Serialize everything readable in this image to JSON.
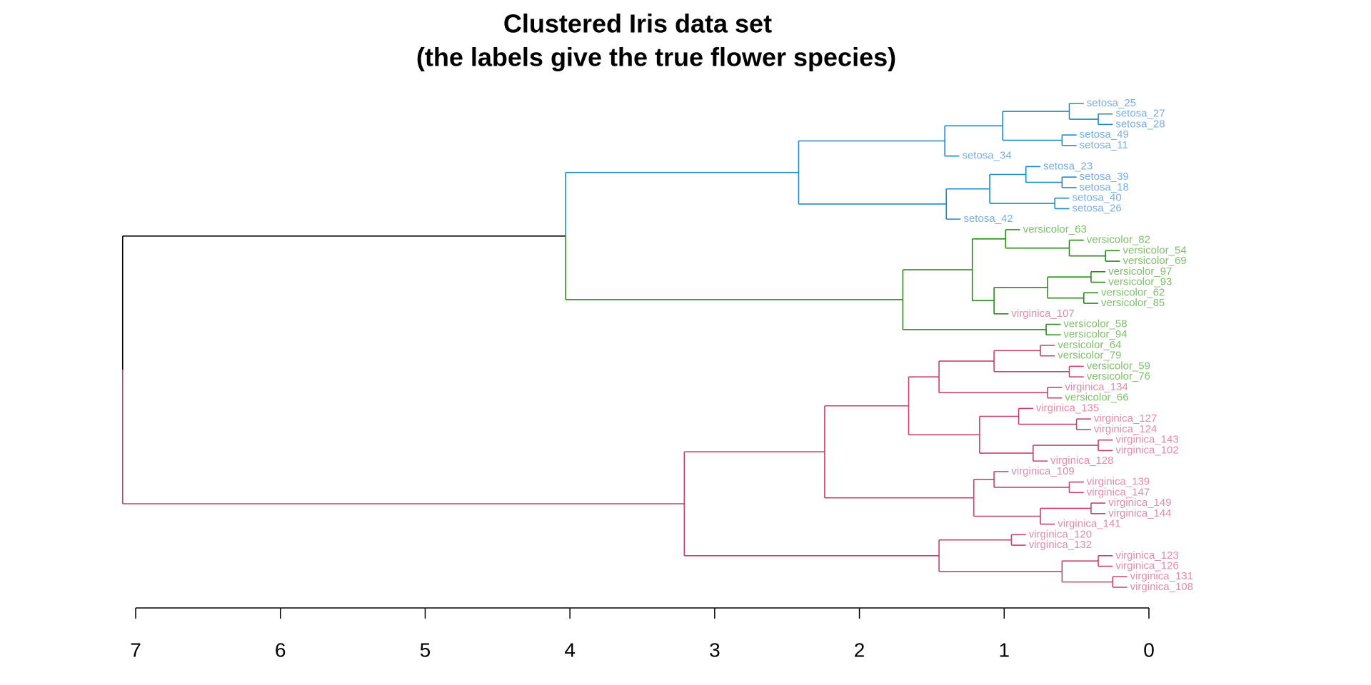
{
  "chart_data": {
    "type": "dendrogram",
    "title": "Clustered Iris data set",
    "subtitle": "(the labels give the true flower species)",
    "xlim": [
      7,
      0
    ],
    "xticks": [
      7,
      6,
      5,
      4,
      3,
      2,
      1,
      0
    ],
    "tree": {
      "height": 7.09,
      "color": "#000000",
      "children": [
        {
          "height": 4.03,
          "color": "#000000",
          "children": [
            {
              "height": 2.42,
              "color": "#1e88c8",
              "children": [
                {
                  "height": 1.41,
                  "color": "#1e88c8",
                  "children": [
                    {
                      "height": 1.01,
                      "color": "#1e88c8",
                      "children": [
                        {
                          "height": 0.55,
                          "color": "#1e88c8",
                          "children": [
                            {
                              "label": "setosa_25",
                              "color": "#7aaee0"
                            },
                            {
                              "height": 0.35,
                              "color": "#1e88c8",
                              "children": [
                                {
                                  "label": "setosa_27",
                                  "color": "#7aaee0"
                                },
                                {
                                  "label": "setosa_28",
                                  "color": "#7aaee0"
                                }
                              ]
                            }
                          ]
                        },
                        {
                          "height": 0.6,
                          "color": "#1e88c8",
                          "children": [
                            {
                              "label": "setosa_49",
                              "color": "#7aaee0"
                            },
                            {
                              "label": "setosa_11",
                              "color": "#7aaee0"
                            }
                          ]
                        }
                      ]
                    },
                    {
                      "label": "setosa_34",
                      "color": "#7aaee0"
                    }
                  ]
                },
                {
                  "height": 1.4,
                  "color": "#1e88c8",
                  "children": [
                    {
                      "height": 1.1,
                      "color": "#1e88c8",
                      "children": [
                        {
                          "height": 0.85,
                          "color": "#1e88c8",
                          "children": [
                            {
                              "label": "setosa_23",
                              "color": "#7aaee0"
                            },
                            {
                              "height": 0.6,
                              "color": "#1e88c8",
                              "children": [
                                {
                                  "label": "setosa_39",
                                  "color": "#7aaee0"
                                },
                                {
                                  "label": "setosa_18",
                                  "color": "#7aaee0"
                                }
                              ]
                            }
                          ]
                        },
                        {
                          "height": 0.65,
                          "color": "#1e88c8",
                          "children": [
                            {
                              "label": "setosa_40",
                              "color": "#7aaee0"
                            },
                            {
                              "label": "setosa_26",
                              "color": "#7aaee0"
                            }
                          ]
                        }
                      ]
                    },
                    {
                      "label": "setosa_42",
                      "color": "#7aaee0"
                    }
                  ]
                }
              ]
            },
            {
              "height": 1.7,
              "color": "#2a8a1a",
              "children": [
                {
                  "height": 1.22,
                  "color": "#2a8a1a",
                  "children": [
                    {
                      "height": 0.99,
                      "color": "#2a8a1a",
                      "children": [
                        {
                          "label": "versicolor_63",
                          "color": "#7fbf6c"
                        },
                        {
                          "height": 0.55,
                          "color": "#2a8a1a",
                          "children": [
                            {
                              "label": "versicolor_82",
                              "color": "#7fbf6c"
                            },
                            {
                              "height": 0.3,
                              "color": "#2a8a1a",
                              "children": [
                                {
                                  "label": "versicolor_54",
                                  "color": "#7fbf6c"
                                },
                                {
                                  "label": "versicolor_69",
                                  "color": "#7fbf6c"
                                }
                              ]
                            }
                          ]
                        }
                      ]
                    },
                    {
                      "height": 1.07,
                      "color": "#2a8a1a",
                      "children": [
                        {
                          "height": 0.7,
                          "color": "#2a8a1a",
                          "children": [
                            {
                              "height": 0.4,
                              "color": "#2a8a1a",
                              "children": [
                                {
                                  "label": "versicolor_97",
                                  "color": "#7fbf6c"
                                },
                                {
                                  "label": "versicolor_93",
                                  "color": "#7fbf6c"
                                }
                              ]
                            },
                            {
                              "height": 0.45,
                              "color": "#2a8a1a",
                              "children": [
                                {
                                  "label": "versicolor_62",
                                  "color": "#7fbf6c"
                                },
                                {
                                  "label": "versicolor_85",
                                  "color": "#7fbf6c"
                                }
                              ]
                            }
                          ]
                        },
                        {
                          "label": "virginica_107",
                          "color": "#e58aa8"
                        }
                      ]
                    }
                  ]
                },
                {
                  "height": 0.71,
                  "color": "#2a8a1a",
                  "children": [
                    {
                      "label": "versicolor_58",
                      "color": "#7fbf6c"
                    },
                    {
                      "label": "versicolor_94",
                      "color": "#7fbf6c"
                    }
                  ]
                }
              ]
            }
          ]
        },
        {
          "height": 3.21,
          "color": "#c6426e",
          "children": [
            {
              "height": 2.24,
              "color": "#c6426e",
              "children": [
                {
                  "height": 1.66,
                  "color": "#c6426e",
                  "children": [
                    {
                      "height": 1.45,
                      "color": "#c6426e",
                      "children": [
                        {
                          "height": 1.07,
                          "color": "#c6426e",
                          "children": [
                            {
                              "height": 0.75,
                              "color": "#c6426e",
                              "children": [
                                {
                                  "label": "versicolor_64",
                                  "color": "#7fbf6c"
                                },
                                {
                                  "label": "versicolor_79",
                                  "color": "#7fbf6c"
                                }
                              ]
                            },
                            {
                              "height": 0.55,
                              "color": "#c6426e",
                              "children": [
                                {
                                  "label": "versicolor_59",
                                  "color": "#7fbf6c"
                                },
                                {
                                  "label": "versicolor_76",
                                  "color": "#7fbf6c"
                                }
                              ]
                            }
                          ]
                        },
                        {
                          "height": 0.7,
                          "color": "#c6426e",
                          "children": [
                            {
                              "label": "virginica_134",
                              "color": "#e58aa8"
                            },
                            {
                              "label": "versicolor_66",
                              "color": "#7fbf6c"
                            }
                          ]
                        }
                      ]
                    },
                    {
                      "height": 1.17,
                      "color": "#c6426e",
                      "children": [
                        {
                          "height": 0.9,
                          "color": "#c6426e",
                          "children": [
                            {
                              "label": "virginica_135",
                              "color": "#e58aa8"
                            },
                            {
                              "height": 0.5,
                              "color": "#c6426e",
                              "children": [
                                {
                                  "label": "virginica_127",
                                  "color": "#e58aa8"
                                },
                                {
                                  "label": "virginica_124",
                                  "color": "#e58aa8"
                                }
                              ]
                            }
                          ]
                        },
                        {
                          "height": 0.8,
                          "color": "#c6426e",
                          "children": [
                            {
                              "height": 0.35,
                              "color": "#c6426e",
                              "children": [
                                {
                                  "label": "virginica_143",
                                  "color": "#e58aa8"
                                },
                                {
                                  "label": "virginica_102",
                                  "color": "#e58aa8"
                                }
                              ]
                            },
                            {
                              "label": "virginica_128",
                              "color": "#e58aa8"
                            }
                          ]
                        }
                      ]
                    }
                  ]
                },
                {
                  "height": 1.21,
                  "color": "#c6426e",
                  "children": [
                    {
                      "height": 1.07,
                      "color": "#c6426e",
                      "children": [
                        {
                          "label": "virginica_109",
                          "color": "#e58aa8"
                        },
                        {
                          "height": 0.55,
                          "color": "#c6426e",
                          "children": [
                            {
                              "label": "virginica_139",
                              "color": "#e58aa8"
                            },
                            {
                              "label": "virginica_147",
                              "color": "#e58aa8"
                            }
                          ]
                        }
                      ]
                    },
                    {
                      "height": 0.75,
                      "color": "#c6426e",
                      "children": [
                        {
                          "height": 0.4,
                          "color": "#c6426e",
                          "children": [
                            {
                              "label": "virginica_149",
                              "color": "#e58aa8"
                            },
                            {
                              "label": "virginica_144",
                              "color": "#e58aa8"
                            }
                          ]
                        },
                        {
                          "label": "virginica_141",
                          "color": "#e58aa8"
                        }
                      ]
                    }
                  ]
                }
              ]
            },
            {
              "height": 1.45,
              "color": "#c6426e",
              "children": [
                {
                  "height": 0.95,
                  "color": "#c6426e",
                  "children": [
                    {
                      "label": "virginica_120",
                      "color": "#e58aa8"
                    },
                    {
                      "label": "virginica_132",
                      "color": "#e58aa8"
                    }
                  ]
                },
                {
                  "height": 0.6,
                  "color": "#c6426e",
                  "children": [
                    {
                      "height": 0.35,
                      "color": "#c6426e",
                      "children": [
                        {
                          "label": "virginica_123",
                          "color": "#e58aa8"
                        },
                        {
                          "label": "virginica_126",
                          "color": "#e58aa8"
                        }
                      ]
                    },
                    {
                      "height": 0.25,
                      "color": "#c6426e",
                      "children": [
                        {
                          "label": "virginica_131",
                          "color": "#e58aa8"
                        },
                        {
                          "label": "virginica_108",
                          "color": "#e58aa8"
                        }
                      ]
                    }
                  ]
                }
              ]
            }
          ]
        }
      ]
    }
  }
}
